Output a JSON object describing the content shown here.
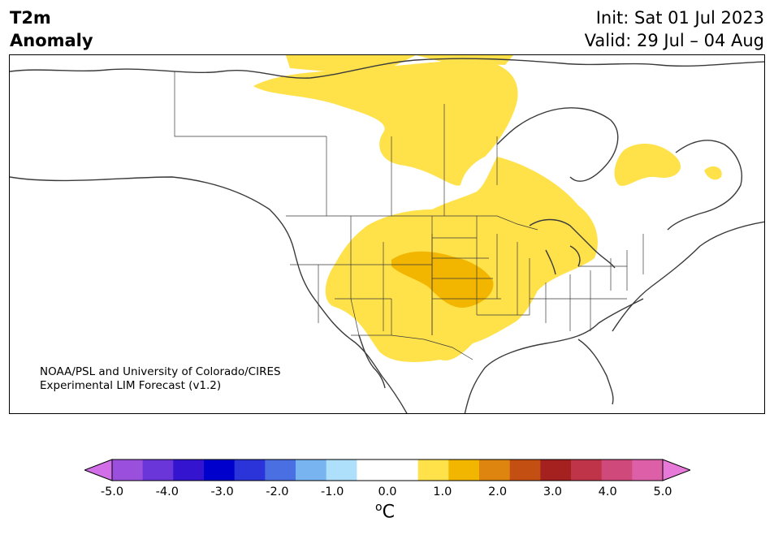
{
  "header": {
    "title_line1": "T2m",
    "title_line2": "Anomaly",
    "init": "Init: Sat 01 Jul 2023",
    "valid": "Valid: 29 Jul – 04 Aug"
  },
  "credit": {
    "line1": "NOAA/PSL and University of Colorado/CIRES",
    "line2": "Experimental LIM Forecast (v1.2)"
  },
  "colorbar": {
    "units": "C",
    "units_prefix": "o",
    "ticks": [
      "-5.0",
      "-4.0",
      "-3.0",
      "-2.0",
      "-1.0",
      "0.0",
      "1.0",
      "2.0",
      "3.0",
      "4.0",
      "5.0"
    ],
    "colors": [
      "#d16ee8",
      "#9b4fdd",
      "#6a35d9",
      "#3514d0",
      "#0000cd",
      "#2a34d8",
      "#4a6fe2",
      "#78b4f0",
      "#aee0fb",
      "#ffffff",
      "#ffffff",
      "#ffe14a",
      "#f2b600",
      "#de8510",
      "#c44f12",
      "#a52120",
      "#bf3448",
      "#cf4a7a",
      "#dd5fa8",
      "#e77ad8"
    ]
  },
  "legend_colors": {
    "anomaly_weak_warm": "#ffe14a",
    "anomaly_moderate_warm": "#f2b600",
    "land_border": "#3a3a3a"
  }
}
